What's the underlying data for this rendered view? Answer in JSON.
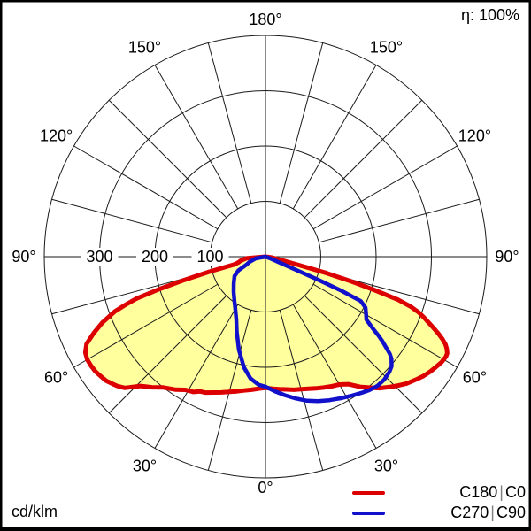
{
  "header": {
    "efficiency_label": "η: 100%"
  },
  "footer": {
    "unit_label": "cd/klm"
  },
  "legend": [
    {
      "left": "C180",
      "sep": "|",
      "right": "C0",
      "color": "#dd0000"
    },
    {
      "left": "C270",
      "sep": "|",
      "right": "C90",
      "color": "#1111cc"
    }
  ],
  "colors": {
    "background": "#ffffff",
    "grid": "#1a1a1a",
    "text": "#000000",
    "border": "#000000",
    "fill_yellow": "#ffff9e",
    "curve_red": "#dd0000",
    "curve_blue": "#1111cc",
    "legend_separator": "#808080"
  },
  "chart_data": {
    "type": "polar",
    "subtype": "luminaire-light-distribution-curve",
    "units": "cd/klm",
    "efficiency_label": "η: 100%",
    "angle_tick_step_deg": 15,
    "angle_labels": [
      {
        "label": "0°",
        "angle": 0,
        "side": 0
      },
      {
        "label": "30°",
        "angle": 30,
        "side": -1
      },
      {
        "label": "30°",
        "angle": 30,
        "side": 1
      },
      {
        "label": "60°",
        "angle": 60,
        "side": -1
      },
      {
        "label": "60°",
        "angle": 60,
        "side": 1
      },
      {
        "label": "90°",
        "angle": 90,
        "side": -1
      },
      {
        "label": "90°",
        "angle": 90,
        "side": 1
      },
      {
        "label": "120°",
        "angle": 120,
        "side": -1
      },
      {
        "label": "120°",
        "angle": 120,
        "side": 1
      },
      {
        "label": "150°",
        "angle": 150,
        "side": -1
      },
      {
        "label": "150°",
        "angle": 150,
        "side": 1
      },
      {
        "label": "180°",
        "angle": 180,
        "side": 0
      }
    ],
    "radial_axis": {
      "max": 400,
      "circle_values": [
        100,
        200,
        300,
        400
      ],
      "tick_labels": [
        {
          "value": 300,
          "label": "300"
        },
        {
          "value": 200,
          "label": "200"
        },
        {
          "value": 100,
          "label": "100"
        }
      ]
    },
    "series": [
      {
        "name": "C180 | C0",
        "color": "#dd0000",
        "fill": "#ffff9e",
        "stroke_width": 5,
        "points_format": "[gamma_deg (negative=C180 side, positive=C0 side), intensity cd/klm]",
        "points": [
          [
            -90,
            0
          ],
          [
            -85,
            35
          ],
          [
            -81,
            45
          ],
          [
            -78,
            50
          ],
          [
            -76,
            58
          ],
          [
            -75,
            105
          ],
          [
            -74,
            152
          ],
          [
            -73,
            200
          ],
          [
            -72,
            245
          ],
          [
            -71,
            268
          ],
          [
            -70,
            290
          ],
          [
            -68,
            318
          ],
          [
            -66,
            340
          ],
          [
            -64,
            360
          ],
          [
            -62,
            369
          ],
          [
            -60,
            372
          ],
          [
            -58,
            372
          ],
          [
            -56,
            371
          ],
          [
            -54,
            368
          ],
          [
            -52,
            365
          ],
          [
            -49,
            356
          ],
          [
            -47,
            348
          ],
          [
            -44,
            325
          ],
          [
            -41,
            313
          ],
          [
            -38,
            300
          ],
          [
            -34,
            290
          ],
          [
            -31,
            281
          ],
          [
            -28,
            277
          ],
          [
            -26,
            271
          ],
          [
            -24,
            269
          ],
          [
            -21,
            263
          ],
          [
            -18,
            258
          ],
          [
            -15,
            253
          ],
          [
            -12,
            249
          ],
          [
            -9,
            245
          ],
          [
            -6,
            242
          ],
          [
            -3,
            239
          ],
          [
            0,
            237
          ],
          [
            3,
            239
          ],
          [
            6,
            241
          ],
          [
            9,
            243
          ],
          [
            12,
            246
          ],
          [
            15,
            248
          ],
          [
            18,
            251
          ],
          [
            21,
            255
          ],
          [
            24,
            259
          ],
          [
            27,
            263
          ],
          [
            30,
            267
          ],
          [
            33,
            275
          ],
          [
            36,
            291
          ],
          [
            39,
            305
          ],
          [
            41,
            315
          ],
          [
            44,
            327
          ],
          [
            46,
            335
          ],
          [
            48,
            343
          ],
          [
            51,
            352
          ],
          [
            53,
            358
          ],
          [
            55,
            363
          ],
          [
            57,
            367
          ],
          [
            59,
            371
          ],
          [
            61,
            373
          ],
          [
            62,
            372
          ],
          [
            63,
            368
          ],
          [
            64,
            362
          ],
          [
            65,
            353
          ],
          [
            66,
            342
          ],
          [
            67,
            330
          ],
          [
            68,
            318
          ],
          [
            69,
            307
          ],
          [
            70,
            295
          ],
          [
            71,
            278
          ],
          [
            72,
            252
          ],
          [
            73,
            205
          ],
          [
            74,
            158
          ],
          [
            75,
            110
          ],
          [
            76,
            60
          ],
          [
            78,
            28
          ],
          [
            82,
            12
          ],
          [
            90,
            0
          ]
        ]
      },
      {
        "name": "C270 | C90",
        "color": "#1111cc",
        "fill": null,
        "stroke_width": 4.5,
        "points_format": "[gamma_deg (negative=C270 side, positive=C90 side), intensity cd/klm]",
        "points": [
          [
            -90,
            0
          ],
          [
            -80,
            18
          ],
          [
            -72,
            30
          ],
          [
            -67,
            38
          ],
          [
            -63,
            55
          ],
          [
            -58,
            66
          ],
          [
            -50,
            75
          ],
          [
            -42,
            86
          ],
          [
            -35,
            98
          ],
          [
            -30,
            109
          ],
          [
            -25,
            125
          ],
          [
            -21,
            145
          ],
          [
            -16,
            175
          ],
          [
            -11,
            204
          ],
          [
            -7,
            222
          ],
          [
            -3,
            232
          ],
          [
            0,
            235
          ],
          [
            4,
            244
          ],
          [
            8,
            253
          ],
          [
            12,
            262
          ],
          [
            16,
            271
          ],
          [
            20,
            278
          ],
          [
            24,
            284
          ],
          [
            28,
            290
          ],
          [
            32,
            296
          ],
          [
            35,
            301
          ],
          [
            38,
            306
          ],
          [
            41,
            309
          ],
          [
            44,
            309
          ],
          [
            47,
            306
          ],
          [
            49,
            302
          ],
          [
            51,
            293
          ],
          [
            52,
            285
          ],
          [
            54,
            262
          ],
          [
            55,
            250
          ],
          [
            56,
            236
          ],
          [
            58,
            215
          ],
          [
            60,
            210
          ],
          [
            63,
            203
          ],
          [
            65,
            190
          ],
          [
            65.8,
            150
          ],
          [
            66.2,
            110
          ],
          [
            66.5,
            70
          ],
          [
            67,
            30
          ],
          [
            70,
            8
          ],
          [
            90,
            0
          ]
        ]
      }
    ]
  }
}
